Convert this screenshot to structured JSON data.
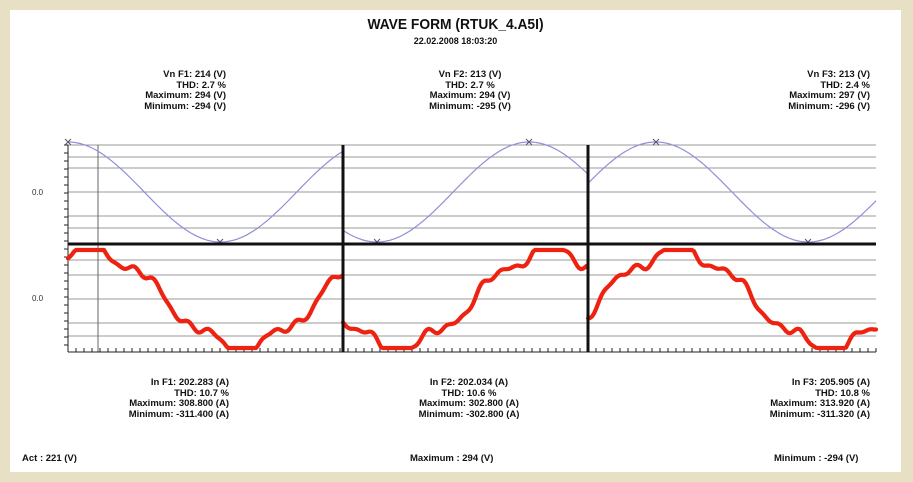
{
  "title": "WAVE FORM (RTUK_4.A5I)",
  "datetime": "22.02.2008 18:03:20",
  "voltage_info": [
    {
      "vn": "Vn F1: 214 (V)",
      "thd": "THD: 2.7 %",
      "max": "Maximum: 294 (V)",
      "min": "Minimum: -294 (V)"
    },
    {
      "vn": "Vn F2: 213 (V)",
      "thd": "THD: 2.7 %",
      "max": "Maximum: 294 (V)",
      "min": "Minimum: -295 (V)"
    },
    {
      "vn": "Vn F3: 213 (V)",
      "thd": "THD: 2.4 %",
      "max": "Maximum: 297 (V)",
      "min": "Minimum: -296 (V)"
    }
  ],
  "current_info": [
    {
      "in": "In F1: 202.283 (A)",
      "thd": "THD: 10.7 %",
      "max": "Maximum: 308.800 (A)",
      "min": "Minimum: -311.400 (A)"
    },
    {
      "in": "In F2: 202.034 (A)",
      "thd": "THD: 10.6 %",
      "max": "Maximum: 302.800 (A)",
      "min": "Minimum: -302.800 (A)"
    },
    {
      "in": "In F3: 205.905 (A)",
      "thd": "THD: 10.8 %",
      "max": "Maximum: 313.920 (A)",
      "min": "Minimum: -311.320 (A)"
    }
  ],
  "footer": {
    "act": "Act : 221 (V)",
    "maximum": "Maximum : 294 (V)",
    "minimum": "Minimum : -294 (V)"
  },
  "axis_labels": {
    "upper_zero": "0.0",
    "lower_zero": "0.0"
  },
  "chart_data": {
    "type": "line",
    "panels": [
      {
        "name": "F1",
        "voltage_phase_deg": 90,
        "current_phase_deg": 65
      },
      {
        "name": "F2",
        "voltage_phase_deg": 230,
        "current_phase_deg": 205
      },
      {
        "name": "F3",
        "voltage_phase_deg": 10,
        "current_phase_deg": 345
      }
    ],
    "series": [
      {
        "type": "voltage",
        "color": "#8f8fd8"
      },
      {
        "type": "current",
        "color": "#ee2211"
      }
    ],
    "voltage_max": 294,
    "voltage_min": -294,
    "current_max": 308.8,
    "current_min": -311.4
  }
}
